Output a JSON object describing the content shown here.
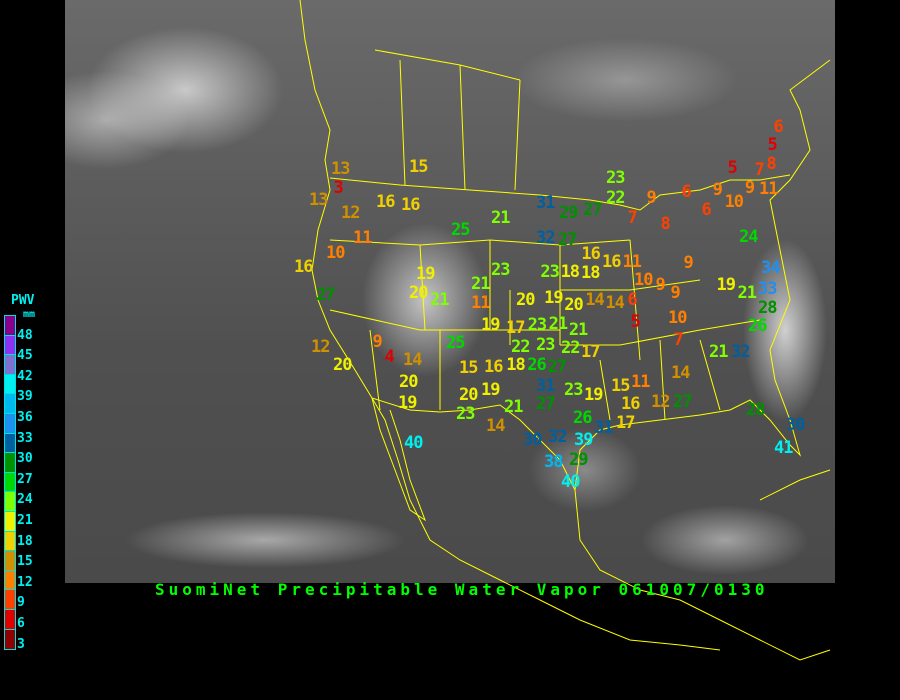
{
  "title": "SuomiNet Precipitable Water Vapor 061007/0130",
  "legend": {
    "title": "PWV",
    "unit": "mm",
    "labels": [
      "48",
      "45",
      "42",
      "39",
      "36",
      "33",
      "30",
      "27",
      "24",
      "21",
      "18",
      "15",
      "12",
      "9",
      "6",
      "3"
    ],
    "colors_bottom_to_top": [
      "#900000",
      "#e00000",
      "#ff4000",
      "#ff8000",
      "#d09000",
      "#f0d000",
      "#f0f000",
      "#80ff00",
      "#00d800",
      "#009000",
      "#005f9f",
      "#2090f0",
      "#00b8f0",
      "#00f0f0",
      "#8070d0",
      "#9030f0",
      "#8b008b"
    ]
  },
  "map": {
    "background": "satellite infrared imagery",
    "boundary_color": "#ffff00"
  },
  "stations": [
    {
      "v": 13
    },
    {
      "v": 3
    },
    {
      "v": 13
    },
    {
      "v": 12
    },
    {
      "v": 16
    },
    {
      "v": 16
    },
    {
      "v": 15
    },
    {
      "v": 11
    },
    {
      "v": 10
    },
    {
      "v": 16
    },
    {
      "v": 27
    },
    {
      "v": 25
    },
    {
      "v": 21
    },
    {
      "v": 19
    },
    {
      "v": 20
    },
    {
      "v": 21
    },
    {
      "v": 21
    },
    {
      "v": 11
    },
    {
      "v": 23
    },
    {
      "v": 20
    },
    {
      "v": 19
    },
    {
      "v": 17
    },
    {
      "v": 25
    },
    {
      "v": 12
    },
    {
      "v": 20
    },
    {
      "v": 9
    },
    {
      "v": 4
    },
    {
      "v": 14
    },
    {
      "v": 20
    },
    {
      "v": 19
    },
    {
      "v": 15
    },
    {
      "v": 16
    },
    {
      "v": 18
    },
    {
      "v": 19
    },
    {
      "v": 20
    },
    {
      "v": 23
    },
    {
      "v": 21
    },
    {
      "v": 14
    },
    {
      "v": 40
    },
    {
      "v": 31
    },
    {
      "v": 32
    },
    {
      "v": 27
    },
    {
      "v": 29
    },
    {
      "v": 27
    },
    {
      "v": 23
    },
    {
      "v": 22
    },
    {
      "v": 23
    },
    {
      "v": 18
    },
    {
      "v": 18
    },
    {
      "v": 16
    },
    {
      "v": 16
    },
    {
      "v": 11
    },
    {
      "v": 19
    },
    {
      "v": 20
    },
    {
      "v": 14
    },
    {
      "v": 14
    },
    {
      "v": 6
    },
    {
      "v": 5
    },
    {
      "v": 10
    },
    {
      "v": 9
    },
    {
      "v": 9
    },
    {
      "v": 9
    },
    {
      "v": 10
    },
    {
      "v": 7
    },
    {
      "v": 23
    },
    {
      "v": 21
    },
    {
      "v": 22
    },
    {
      "v": 23
    },
    {
      "v": 21
    },
    {
      "v": 17
    },
    {
      "v": 22
    },
    {
      "v": 26
    },
    {
      "v": 27
    },
    {
      "v": 31
    },
    {
      "v": 27
    },
    {
      "v": 23
    },
    {
      "v": 19
    },
    {
      "v": 15
    },
    {
      "v": 11
    },
    {
      "v": 16
    },
    {
      "v": 17
    },
    {
      "v": 12
    },
    {
      "v": 27
    },
    {
      "v": 14
    },
    {
      "v": 26
    },
    {
      "v": 31
    },
    {
      "v": 30
    },
    {
      "v": 32
    },
    {
      "v": 39
    },
    {
      "v": 38
    },
    {
      "v": 29
    },
    {
      "v": 40
    },
    {
      "v": 21
    },
    {
      "v": 32
    },
    {
      "v": 26
    },
    {
      "v": 28
    },
    {
      "v": 33
    },
    {
      "v": 21
    },
    {
      "v": 19
    },
    {
      "v": 34
    },
    {
      "v": 24
    },
    {
      "v": 28
    },
    {
      "v": 30
    },
    {
      "v": 41
    },
    {
      "v": 6
    },
    {
      "v": 5
    },
    {
      "v": 8
    },
    {
      "v": 7
    },
    {
      "v": 5
    },
    {
      "v": 9
    },
    {
      "v": 9
    },
    {
      "v": 11
    },
    {
      "v": 10
    },
    {
      "v": 6
    },
    {
      "v": 6
    },
    {
      "v": 9
    },
    {
      "v": 7
    },
    {
      "v": 8
    }
  ]
}
